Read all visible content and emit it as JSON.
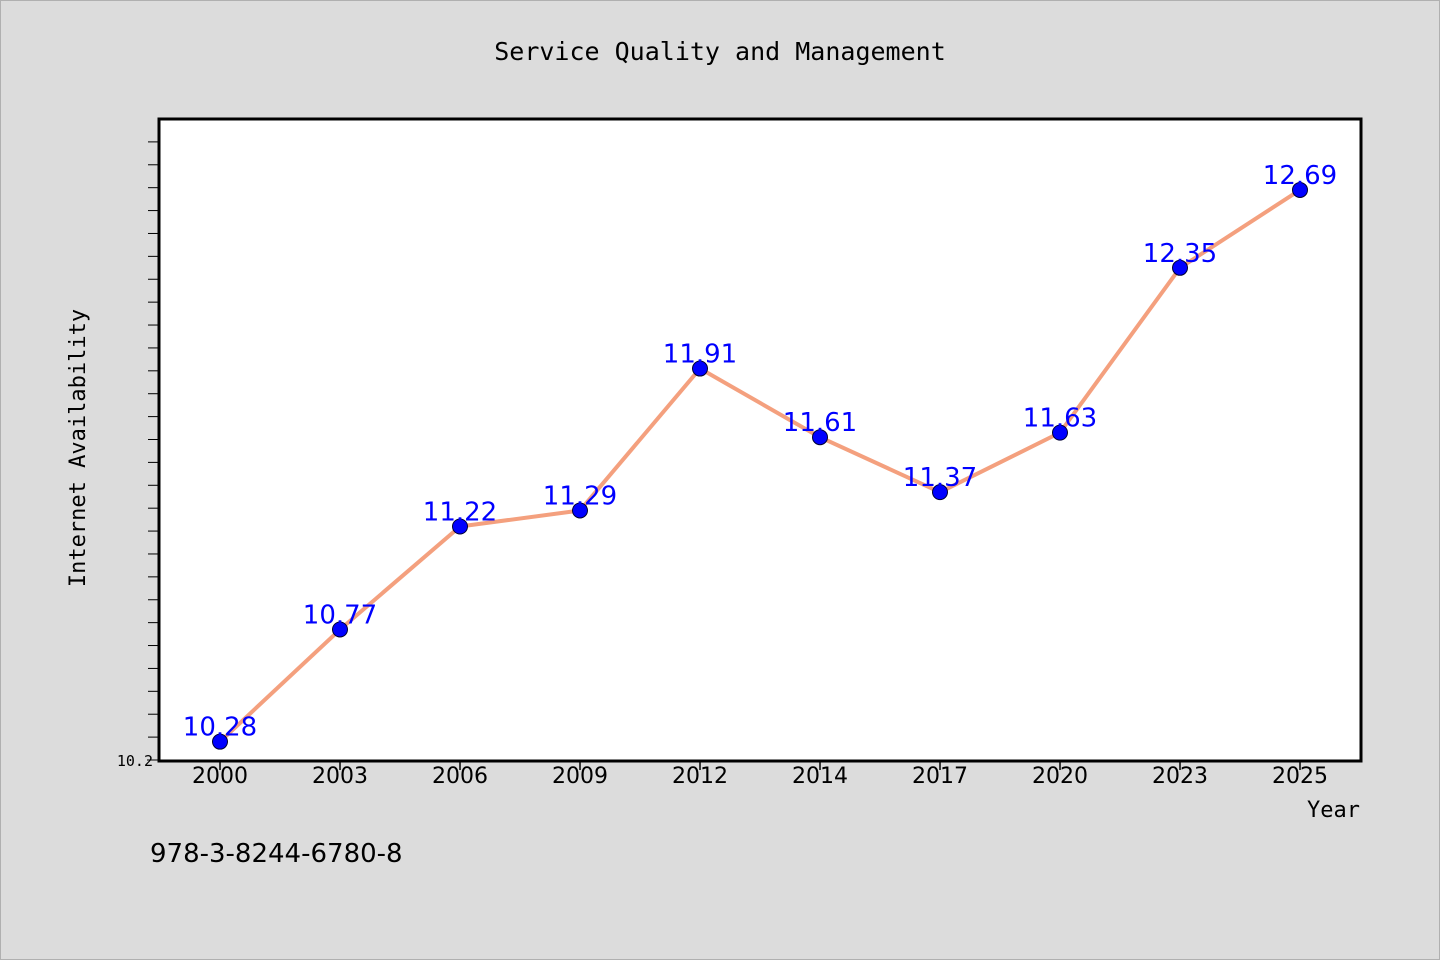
{
  "chart_data": {
    "type": "line",
    "title": "Service Quality and Management",
    "xlabel": "Year",
    "ylabel": "Internet Availability",
    "categories": [
      "2000",
      "2003",
      "2006",
      "2009",
      "2012",
      "2014",
      "2017",
      "2020",
      "2023",
      "2025"
    ],
    "series": [
      {
        "values": [
          10.28,
          10.77,
          11.22,
          11.29,
          11.91,
          11.61,
          11.37,
          11.63,
          12.35,
          12.69
        ],
        "labels": [
          "10.28",
          "10.77",
          "11.22",
          "11.29",
          "11.91",
          "11.61",
          "11.37",
          "11.63",
          "12.35",
          "12.69"
        ]
      }
    ],
    "ylim": [
      10.2,
      13.0
    ],
    "ytick_labels": [
      "10.2"
    ],
    "grid": false,
    "line_color": "#f4a07e",
    "marker_color": "#0000ff",
    "label_color": "#0000ff"
  },
  "footer": {
    "isbn": "978-3-8244-6780-8"
  },
  "colors": {
    "background": "#dcdcdc",
    "plot_background": "#ffffff"
  }
}
